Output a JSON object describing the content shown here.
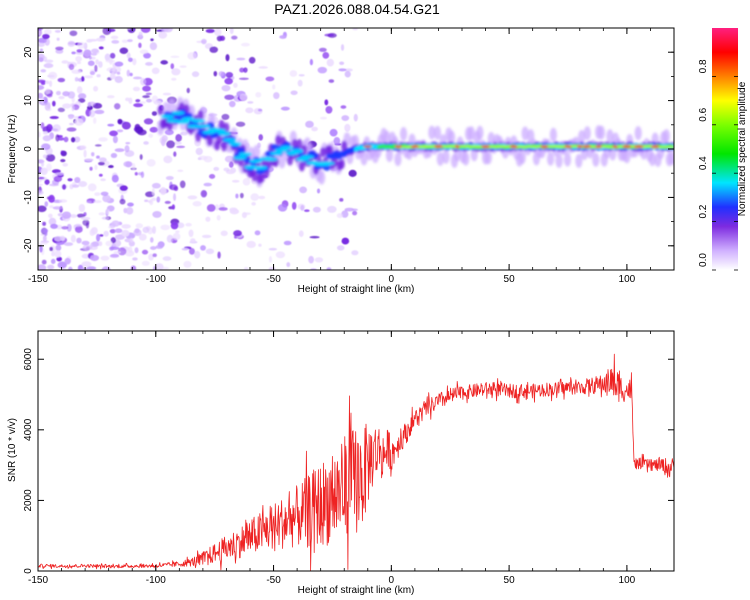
{
  "chart_data": [
    {
      "type": "heatmap",
      "title": "PAZ1.2026.088.04.54.G21",
      "xlabel": "Height of straight line (km)",
      "ylabel": "Frequency (Hz)",
      "xlim": [
        -150,
        120
      ],
      "ylim": [
        -25,
        25
      ],
      "x_ticks": [
        "-150",
        "-100",
        "-50",
        "0",
        "50",
        "100"
      ],
      "y_ticks": [
        "20",
        "10",
        "0",
        "-10",
        "-20"
      ],
      "colorbar": {
        "label": "Normalized spectral amplitude",
        "range": [
          0,
          1
        ],
        "ticks": [
          "0.0",
          "0.2",
          "0.4",
          "0.6",
          "0.8"
        ]
      },
      "ridge": {
        "x": [
          -95,
          -90,
          -85,
          -80,
          -75,
          -70,
          -65,
          -60,
          -55,
          -50,
          -45,
          -40,
          -35,
          -30,
          -25,
          -20,
          -15,
          -10,
          -5,
          0,
          10,
          20,
          30,
          40,
          50,
          60,
          70,
          80,
          90,
          100,
          110,
          120
        ],
        "frequency": [
          7,
          6.5,
          5.5,
          4.5,
          3.5,
          2,
          -0.5,
          -3,
          -4,
          -1,
          0.5,
          -1,
          -2,
          -3,
          -2,
          -1,
          0,
          0.5,
          0.5,
          0.5,
          0.5,
          0.5,
          0.5,
          0.5,
          0.5,
          0.5,
          0.5,
          0.5,
          0.5,
          0.5,
          0.5,
          0.5
        ]
      }
    },
    {
      "type": "line",
      "xlabel": "Height of straight line (km)",
      "ylabel": "SNR (10 * v/v)",
      "xlim": [
        -150,
        120
      ],
      "ylim": [
        0,
        6800
      ],
      "x_ticks": [
        "-150",
        "-100",
        "-50",
        "0",
        "50",
        "100"
      ],
      "y_ticks": [
        "0",
        "2000",
        "4000",
        "6000"
      ],
      "series": [
        {
          "name": "SNR",
          "color": "#ee2222",
          "x": [
            -150,
            -140,
            -130,
            -120,
            -110,
            -100,
            -95,
            -90,
            -85,
            -80,
            -75,
            -70,
            -65,
            -60,
            -55,
            -50,
            -45,
            -40,
            -35,
            -30,
            -25,
            -20,
            -15,
            -12,
            -10,
            -8,
            -5,
            -3,
            -1,
            0,
            2,
            4,
            5,
            6,
            8,
            10,
            15,
            20,
            25,
            30,
            35,
            40,
            45,
            50,
            55,
            60,
            65,
            70,
            75,
            80,
            85,
            90,
            93,
            95,
            97,
            100,
            102,
            103,
            105,
            110,
            115,
            118,
            120
          ],
          "mean": [
            150,
            140,
            150,
            130,
            140,
            150,
            170,
            200,
            250,
            350,
            500,
            650,
            800,
            950,
            1100,
            1250,
            1400,
            1550,
            1700,
            1900,
            2100,
            2300,
            2600,
            2700,
            3000,
            3300,
            3450,
            3300,
            3500,
            3300,
            3500,
            3700,
            3800,
            3900,
            4100,
            4300,
            4600,
            4800,
            4950,
            5050,
            5100,
            5150,
            5150,
            5100,
            5100,
            5100,
            5150,
            5150,
            5200,
            5200,
            5250,
            5300,
            5400,
            5300,
            5200,
            5100,
            5200,
            3000,
            3050,
            3000,
            3000,
            2900,
            3000
          ],
          "spread": [
            60,
            60,
            60,
            60,
            60,
            70,
            80,
            100,
            150,
            250,
            350,
            450,
            550,
            650,
            750,
            850,
            950,
            1100,
            1300,
            1500,
            1700,
            1900,
            2000,
            1800,
            1500,
            1200,
            900,
            800,
            700,
            600,
            500,
            450,
            400,
            400,
            350,
            350,
            300,
            300,
            300,
            250,
            250,
            250,
            250,
            250,
            250,
            250,
            250,
            250,
            250,
            250,
            300,
            350,
            500,
            700,
            500,
            400,
            350,
            200,
            200,
            200,
            250,
            400,
            250
          ]
        }
      ]
    }
  ]
}
